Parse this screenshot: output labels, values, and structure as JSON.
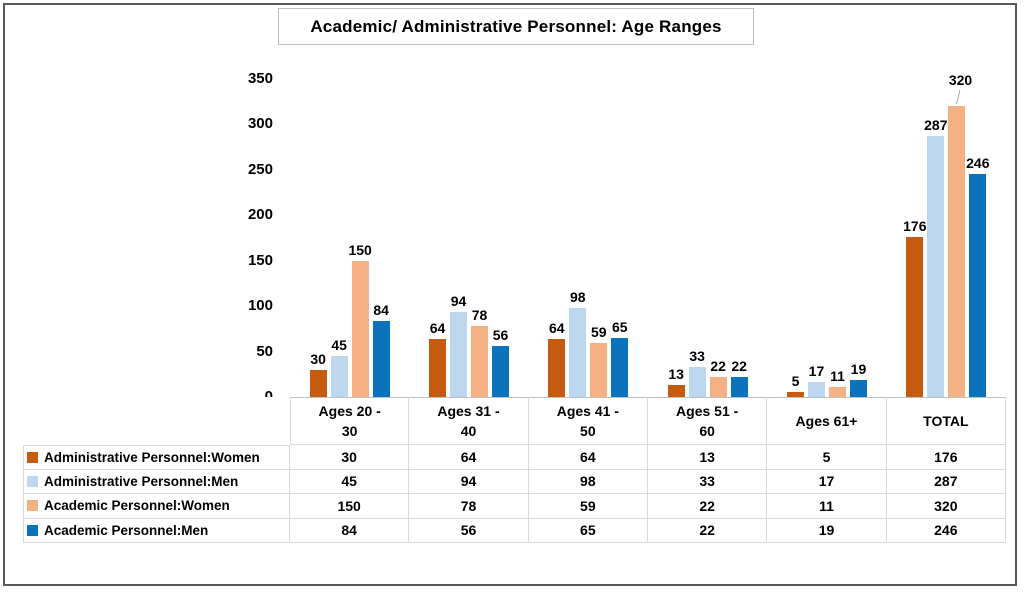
{
  "chart_data": {
    "type": "bar",
    "title": "Academic/ Administrative Personnel: Age Ranges",
    "categories": [
      "Ages 20 - 30",
      "Ages 31 - 40",
      "Ages 41 - 50",
      "Ages 51 - 60",
      "Ages 61+",
      "TOTAL"
    ],
    "category_header_lines": [
      [
        "Ages 20 -",
        "30"
      ],
      [
        "Ages 31 -",
        "40"
      ],
      [
        "Ages 41 -",
        "50"
      ],
      [
        "Ages 51 -",
        "60"
      ],
      [
        "Ages 61+"
      ],
      [
        "TOTAL"
      ]
    ],
    "series": [
      {
        "name": "Administrative Personnel:Women",
        "color": "#C55A11",
        "values": [
          30,
          64,
          64,
          13,
          5,
          176
        ]
      },
      {
        "name": "Administrative Personnel:Men",
        "color": "#BDD7EE",
        "values": [
          45,
          94,
          98,
          33,
          17,
          287
        ]
      },
      {
        "name": "Academic Personnel:Women",
        "color": "#F4B183",
        "values": [
          150,
          78,
          59,
          22,
          11,
          320
        ]
      },
      {
        "name": "Academic Personnel:Men",
        "color": "#0B72BC",
        "values": [
          84,
          56,
          65,
          22,
          19,
          246
        ]
      }
    ],
    "ylabel": "",
    "xlabel": "",
    "ylim": [
      0,
      350
    ],
    "y_ticks": [
      0,
      50,
      100,
      150,
      200,
      250,
      300,
      350
    ],
    "grid": false,
    "data_labels": true,
    "legend_position": "table-left",
    "label_offsets": [
      {
        "category_index": 5,
        "series_index": 2,
        "leader": true
      }
    ]
  },
  "colors": {
    "outer_border": "#595959",
    "title_border": "#BFBFBF",
    "table_border": "#D9D9D9",
    "axis_line": "#BFBFBF",
    "leader_line": "#A6A6A6"
  }
}
